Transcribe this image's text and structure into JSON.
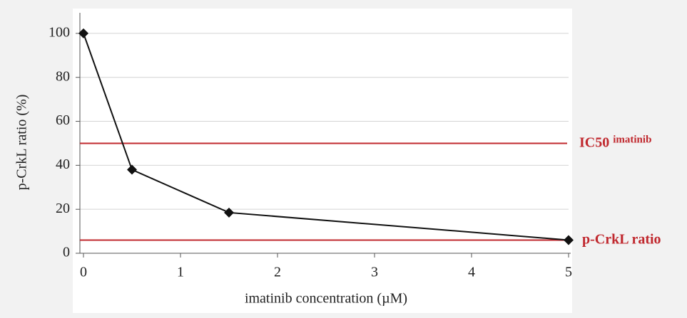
{
  "chart_data": {
    "type": "line",
    "x_label": "imatinib concentration (µM)",
    "y_label": "p-CrkL ratio (%)",
    "x": [
      0,
      0.5,
      1.5,
      5
    ],
    "values": [
      100,
      38,
      18.5,
      6
    ],
    "color": "#111111",
    "xlim": [
      0,
      5
    ],
    "ylim": [
      0,
      110
    ],
    "xticks": [
      0,
      1,
      2,
      3,
      4,
      5
    ],
    "yticks": [
      0,
      20,
      40,
      60,
      80,
      100
    ],
    "grid": true,
    "reference_lines": [
      {
        "value": 50,
        "label": "IC50",
        "sub": "imatinib",
        "color": "#c0282e"
      },
      {
        "value": 6,
        "label": "p-CrkL ratio",
        "color": "#c0282e"
      }
    ]
  }
}
